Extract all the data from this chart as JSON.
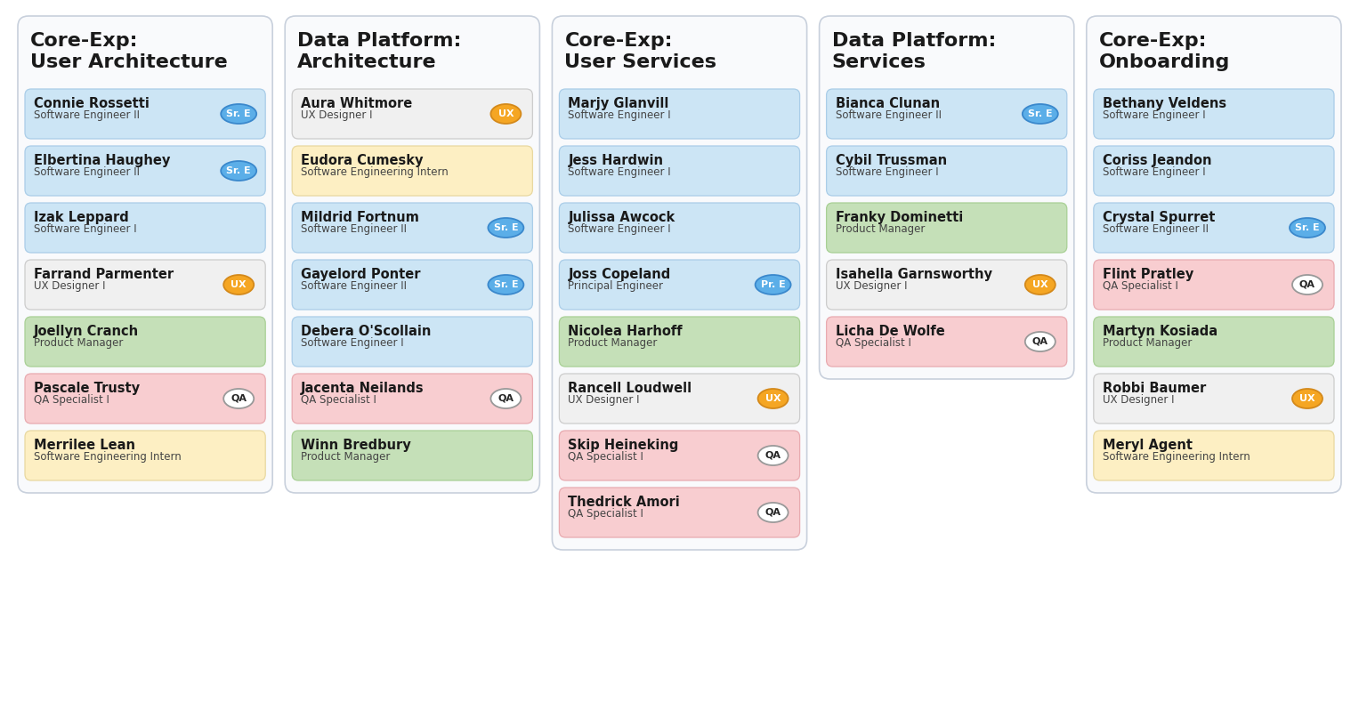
{
  "columns": [
    {
      "title": "Core-Exp:\nUser Architecture",
      "members": [
        {
          "name": "Connie Rossetti",
          "role": "Software Engineer II",
          "color": "#cce5f5",
          "badge": "Sr. E",
          "badge_color": "blue"
        },
        {
          "name": "Elbertina Haughey",
          "role": "Software Engineer II",
          "color": "#cce5f5",
          "badge": "Sr. E",
          "badge_color": "blue"
        },
        {
          "name": "Izak Leppard",
          "role": "Software Engineer I",
          "color": "#cce5f5",
          "badge": null,
          "badge_color": null
        },
        {
          "name": "Farrand Parmenter",
          "role": "UX Designer I",
          "color": "#f0f0f0",
          "badge": "UX",
          "badge_color": "orange"
        },
        {
          "name": "Joellyn Cranch",
          "role": "Product Manager",
          "color": "#c5e0b8",
          "badge": null,
          "badge_color": null
        },
        {
          "name": "Pascale Trusty",
          "role": "QA Specialist I",
          "color": "#f8cdd0",
          "badge": "QA",
          "badge_color": "white"
        },
        {
          "name": "Merrilee Lean",
          "role": "Software Engineering Intern",
          "color": "#fdefc3",
          "badge": null,
          "badge_color": null
        }
      ]
    },
    {
      "title": "Data Platform:\nArchitecture",
      "members": [
        {
          "name": "Aura Whitmore",
          "role": "UX Designer I",
          "color": "#f0f0f0",
          "badge": "UX",
          "badge_color": "orange"
        },
        {
          "name": "Eudora Cumesky",
          "role": "Software Engineering Intern",
          "color": "#fdefc3",
          "badge": null,
          "badge_color": null
        },
        {
          "name": "Mildrid Fortnum",
          "role": "Software Engineer II",
          "color": "#cce5f5",
          "badge": "Sr. E",
          "badge_color": "blue"
        },
        {
          "name": "Gayelord Ponter",
          "role": "Software Engineer II",
          "color": "#cce5f5",
          "badge": "Sr. E",
          "badge_color": "blue"
        },
        {
          "name": "Debera O'Scollain",
          "role": "Software Engineer I",
          "color": "#cce5f5",
          "badge": null,
          "badge_color": null
        },
        {
          "name": "Jacenta Neilands",
          "role": "QA Specialist I",
          "color": "#f8cdd0",
          "badge": "QA",
          "badge_color": "white"
        },
        {
          "name": "Winn Bredbury",
          "role": "Product Manager",
          "color": "#c5e0b8",
          "badge": null,
          "badge_color": null
        }
      ]
    },
    {
      "title": "Core-Exp:\nUser Services",
      "members": [
        {
          "name": "Marjy Glanvill",
          "role": "Software Engineer I",
          "color": "#cce5f5",
          "badge": null,
          "badge_color": null
        },
        {
          "name": "Jess Hardwin",
          "role": "Software Engineer I",
          "color": "#cce5f5",
          "badge": null,
          "badge_color": null
        },
        {
          "name": "Julissa Awcock",
          "role": "Software Engineer I",
          "color": "#cce5f5",
          "badge": null,
          "badge_color": null
        },
        {
          "name": "Joss Copeland",
          "role": "Principal Engineer",
          "color": "#cce5f5",
          "badge": "Pr. E",
          "badge_color": "blue"
        },
        {
          "name": "Nicolea Harhoff",
          "role": "Product Manager",
          "color": "#c5e0b8",
          "badge": null,
          "badge_color": null
        },
        {
          "name": "Rancell Loudwell",
          "role": "UX Designer I",
          "color": "#f0f0f0",
          "badge": "UX",
          "badge_color": "orange"
        },
        {
          "name": "Skip Heineking",
          "role": "QA Specialist I",
          "color": "#f8cdd0",
          "badge": "QA",
          "badge_color": "white"
        },
        {
          "name": "Thedrick Amori",
          "role": "QA Specialist I",
          "color": "#f8cdd0",
          "badge": "QA",
          "badge_color": "white"
        }
      ]
    },
    {
      "title": "Data Platform:\nServices",
      "members": [
        {
          "name": "Bianca Clunan",
          "role": "Software Engineer II",
          "color": "#cce5f5",
          "badge": "Sr. E",
          "badge_color": "blue"
        },
        {
          "name": "Cybil Trussman",
          "role": "Software Engineer I",
          "color": "#cce5f5",
          "badge": null,
          "badge_color": null
        },
        {
          "name": "Franky Dominetti",
          "role": "Product Manager",
          "color": "#c5e0b8",
          "badge": null,
          "badge_color": null
        },
        {
          "name": "Isahella Garnsworthy",
          "role": "UX Designer I",
          "color": "#f0f0f0",
          "badge": "UX",
          "badge_color": "orange"
        },
        {
          "name": "Licha De Wolfe",
          "role": "QA Specialist I",
          "color": "#f8cdd0",
          "badge": "QA",
          "badge_color": "white"
        }
      ]
    },
    {
      "title": "Core-Exp:\nOnboarding",
      "members": [
        {
          "name": "Bethany Veldens",
          "role": "Software Engineer I",
          "color": "#cce5f5",
          "badge": null,
          "badge_color": null
        },
        {
          "name": "Coriss Jeandon",
          "role": "Software Engineer I",
          "color": "#cce5f5",
          "badge": null,
          "badge_color": null
        },
        {
          "name": "Crystal Spurret",
          "role": "Software Engineer II",
          "color": "#cce5f5",
          "badge": "Sr. E",
          "badge_color": "blue"
        },
        {
          "name": "Flint Pratley",
          "role": "QA Specialist I",
          "color": "#f8cdd0",
          "badge": "QA",
          "badge_color": "white"
        },
        {
          "name": "Martyn Kosiada",
          "role": "Product Manager",
          "color": "#c5e0b8",
          "badge": null,
          "badge_color": null
        },
        {
          "name": "Robbi Baumer",
          "role": "UX Designer I",
          "color": "#f0f0f0",
          "badge": "UX",
          "badge_color": "orange"
        },
        {
          "name": "Meryl Agent",
          "role": "Software Engineering Intern",
          "color": "#fdefc3",
          "badge": null,
          "badge_color": null
        }
      ]
    }
  ],
  "bg_color": "#ffffff",
  "column_bg": "#f9fafc",
  "column_border": "#c8d0dc",
  "card_border": "#b8cce0",
  "title_fontsize": 16,
  "name_fontsize": 10.5,
  "role_fontsize": 8.5,
  "badge_fontsize": 8
}
